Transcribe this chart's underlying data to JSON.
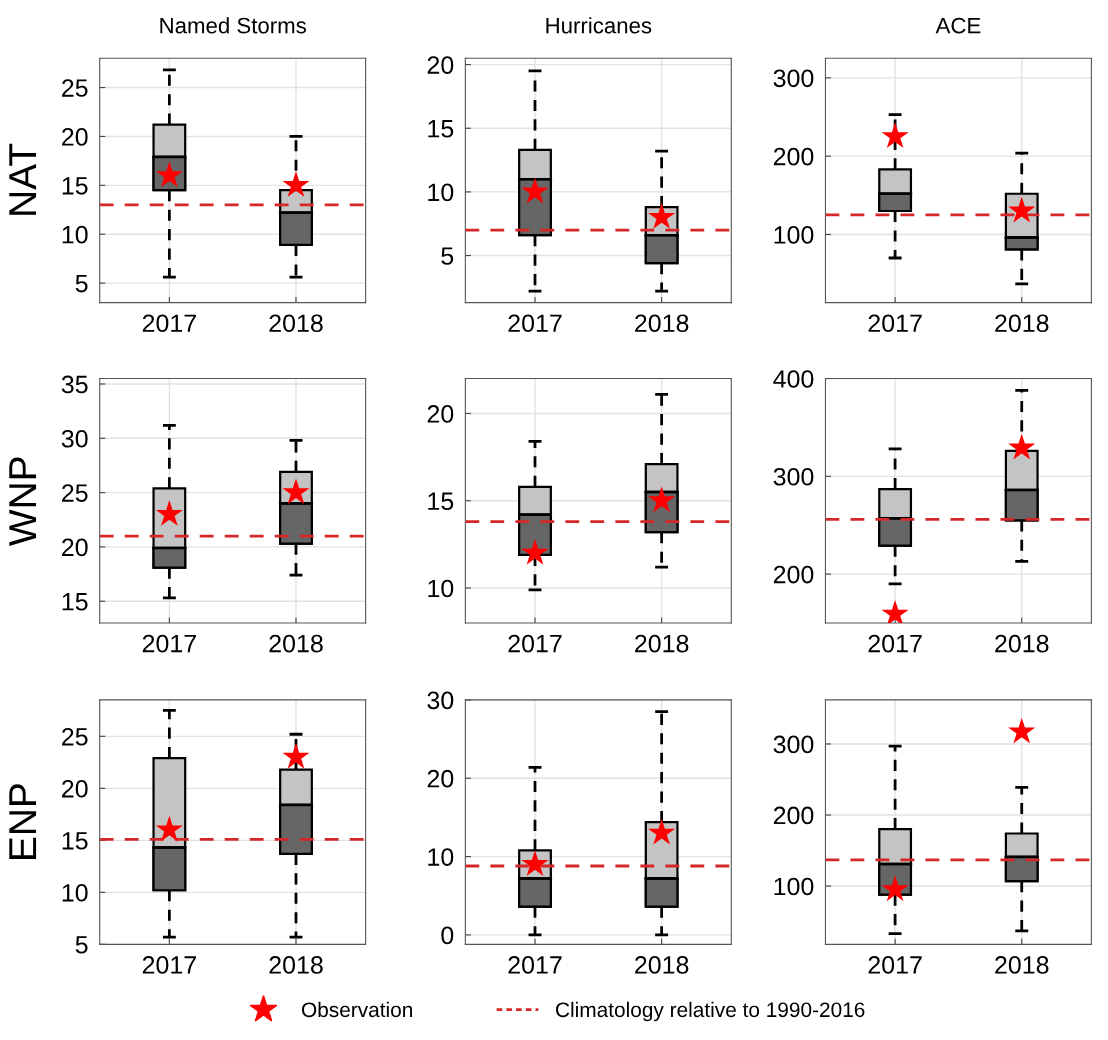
{
  "chart_data": [
    {
      "type": "box",
      "title": "Named Storms",
      "ylabel": "NAT",
      "categories": [
        "2017",
        "2018"
      ],
      "boxes": [
        {
          "low": 5.6,
          "q1": 14.5,
          "median": 17.9,
          "q3": 21.2,
          "high": 26.8
        },
        {
          "low": 5.6,
          "q1": 8.9,
          "median": 12.2,
          "q3": 14.5,
          "high": 20
        }
      ],
      "series": [
        {
          "type": "scatter",
          "values": [
            16,
            15
          ],
          "color": "#ff0000",
          "marker": "star"
        }
      ],
      "ref_lines": [
        {
          "axis": "y",
          "value": 13,
          "color": "#d62728",
          "line_style": "dashed"
        }
      ],
      "ylim": [
        3,
        28
      ],
      "yticks": [
        5,
        10,
        15,
        20,
        25
      ],
      "grid": true
    },
    {
      "type": "box",
      "title": "Hurricanes",
      "categories": [
        "2017",
        "2018"
      ],
      "boxes": [
        {
          "low": 2.2,
          "q1": 6.6,
          "median": 11,
          "q3": 13.3,
          "high": 19.5
        },
        {
          "low": 2.2,
          "q1": 4.4,
          "median": 6.6,
          "q3": 8.8,
          "high": 13.2
        }
      ],
      "series": [
        {
          "type": "scatter",
          "values": [
            10,
            8
          ],
          "color": "#ff0000",
          "marker": "star"
        }
      ],
      "ref_lines": [
        {
          "axis": "y",
          "value": 7,
          "color": "#d62728",
          "line_style": "dashed"
        }
      ],
      "ylim": [
        1.3,
        20.5
      ],
      "yticks": [
        5,
        10,
        15,
        20
      ],
      "grid": true
    },
    {
      "type": "box",
      "title": "ACE",
      "categories": [
        "2017",
        "2018"
      ],
      "boxes": [
        {
          "low": 70,
          "q1": 130,
          "median": 152,
          "q3": 183,
          "high": 253
        },
        {
          "low": 37,
          "q1": 81,
          "median": 96,
          "q3": 152,
          "high": 204
        }
      ],
      "series": [
        {
          "type": "scatter",
          "values": [
            225,
            130
          ],
          "color": "#ff0000",
          "marker": "star"
        }
      ],
      "ref_lines": [
        {
          "axis": "y",
          "value": 125,
          "color": "#d62728",
          "line_style": "dashed"
        }
      ],
      "ylim": [
        13,
        325
      ],
      "yticks": [
        100,
        200,
        300
      ],
      "grid": true
    },
    {
      "type": "box",
      "ylabel": "WNP",
      "categories": [
        "2017",
        "2018"
      ],
      "boxes": [
        {
          "low": 15.3,
          "q1": 18.1,
          "median": 19.9,
          "q3": 25.4,
          "high": 31.2
        },
        {
          "low": 17.4,
          "q1": 20.3,
          "median": 24,
          "q3": 26.9,
          "high": 29.8
        }
      ],
      "series": [
        {
          "type": "scatter",
          "values": [
            23,
            25
          ],
          "color": "#ff0000",
          "marker": "star"
        }
      ],
      "ref_lines": [
        {
          "axis": "y",
          "value": 21,
          "color": "#d62728",
          "line_style": "dashed"
        }
      ],
      "ylim": [
        13,
        35.5
      ],
      "yticks": [
        15,
        20,
        25,
        30,
        35
      ],
      "grid": true
    },
    {
      "type": "box",
      "categories": [
        "2017",
        "2018"
      ],
      "boxes": [
        {
          "low": 9.9,
          "q1": 11.9,
          "median": 14.2,
          "q3": 15.8,
          "high": 18.4
        },
        {
          "low": 11.2,
          "q1": 13.2,
          "median": 15.5,
          "q3": 17.1,
          "high": 21.1
        }
      ],
      "series": [
        {
          "type": "scatter",
          "values": [
            12,
            15
          ],
          "color": "#ff0000",
          "marker": "star"
        }
      ],
      "ref_lines": [
        {
          "axis": "y",
          "value": 13.8,
          "color": "#d62728",
          "line_style": "dashed"
        }
      ],
      "ylim": [
        8,
        22
      ],
      "yticks": [
        10,
        15,
        20
      ],
      "grid": true
    },
    {
      "type": "box",
      "categories": [
        "2017",
        "2018"
      ],
      "boxes": [
        {
          "low": 190,
          "q1": 229,
          "median": 257,
          "q3": 287,
          "high": 328
        },
        {
          "low": 213,
          "q1": 255,
          "median": 286,
          "q3": 326,
          "high": 388
        }
      ],
      "series": [
        {
          "type": "scatter",
          "values": [
            159,
            329
          ],
          "color": "#ff0000",
          "marker": "star"
        }
      ],
      "ref_lines": [
        {
          "axis": "y",
          "value": 256,
          "color": "#d62728",
          "line_style": "dashed"
        }
      ],
      "ylim": [
        150,
        400
      ],
      "yticks": [
        200,
        300,
        400
      ],
      "grid": true
    },
    {
      "type": "box",
      "ylabel": "ENP",
      "categories": [
        "2017",
        "2018"
      ],
      "boxes": [
        {
          "low": 5.7,
          "q1": 10.2,
          "median": 14.3,
          "q3": 22.9,
          "high": 27.5
        },
        {
          "low": 5.7,
          "q1": 13.7,
          "median": 18.4,
          "q3": 21.8,
          "high": 25.2
        }
      ],
      "series": [
        {
          "type": "scatter",
          "values": [
            16,
            23
          ],
          "color": "#ff0000",
          "marker": "star"
        }
      ],
      "ref_lines": [
        {
          "axis": "y",
          "value": 15.1,
          "color": "#d62728",
          "line_style": "dashed"
        }
      ],
      "ylim": [
        5,
        28.5
      ],
      "yticks": [
        5,
        10,
        15,
        20,
        25
      ],
      "grid": true
    },
    {
      "type": "box",
      "categories": [
        "2017",
        "2018"
      ],
      "boxes": [
        {
          "low": 0,
          "q1": 3.6,
          "median": 7.2,
          "q3": 10.8,
          "high": 21.4
        },
        {
          "low": 0,
          "q1": 3.6,
          "median": 7.2,
          "q3": 14.4,
          "high": 28.5
        }
      ],
      "series": [
        {
          "type": "scatter",
          "values": [
            9,
            13
          ],
          "color": "#ff0000",
          "marker": "star"
        }
      ],
      "ref_lines": [
        {
          "axis": "y",
          "value": 8.8,
          "color": "#d62728",
          "line_style": "dashed"
        }
      ],
      "ylim": [
        -1.2,
        30
      ],
      "yticks": [
        0,
        10,
        20,
        30
      ],
      "grid": true
    },
    {
      "type": "box",
      "categories": [
        "2017",
        "2018"
      ],
      "boxes": [
        {
          "low": 33,
          "q1": 88,
          "median": 131,
          "q3": 180,
          "high": 297
        },
        {
          "low": 37,
          "q1": 107,
          "median": 141,
          "q3": 174,
          "high": 239
        }
      ],
      "series": [
        {
          "type": "scatter",
          "name": "Observation",
          "values": [
            95,
            317
          ],
          "color": "#ff0000",
          "marker": "star"
        }
      ],
      "ref_lines": [
        {
          "axis": "y",
          "value": 137,
          "label": "Climatology relative to 1990-2016",
          "color": "#d62728",
          "line_style": "dashed"
        }
      ],
      "ylim": [
        18,
        362
      ],
      "yticks": [
        100,
        200,
        300
      ],
      "grid": true,
      "legend": "bottom"
    }
  ]
}
